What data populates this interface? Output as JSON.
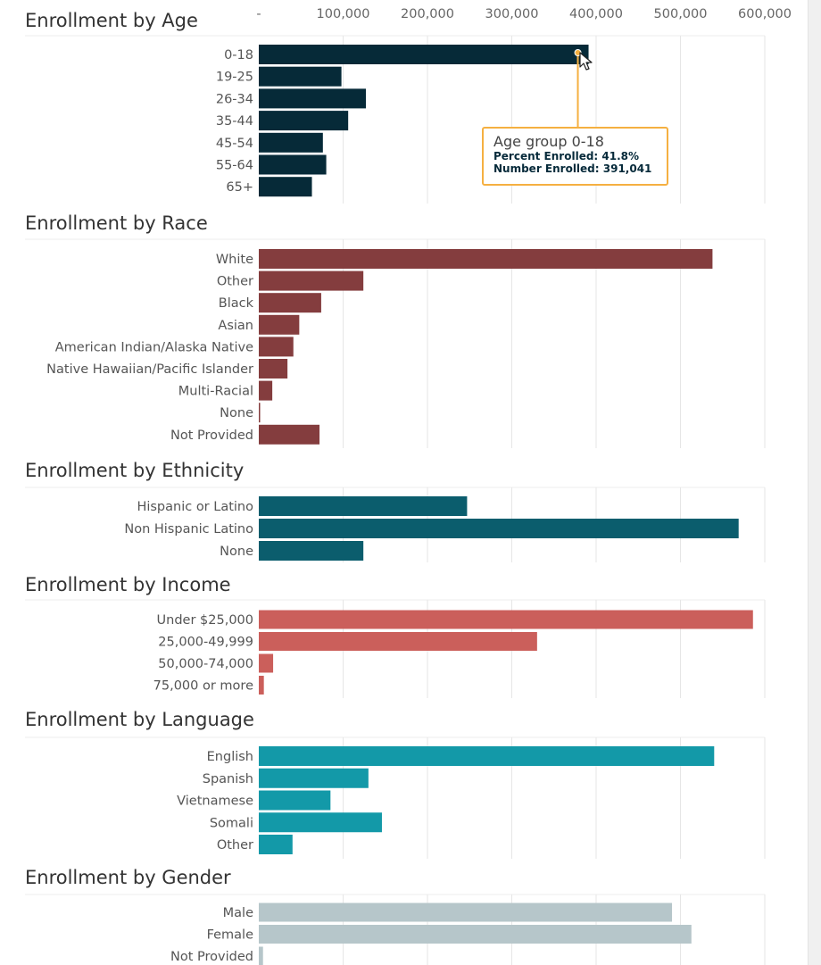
{
  "axis": {
    "min": 0,
    "max": 600000,
    "ticks": [
      "-",
      "100,000",
      "200,000",
      "300,000",
      "400,000",
      "500,000",
      "600,000"
    ]
  },
  "chart_data": [
    {
      "type": "bar",
      "orientation": "horizontal",
      "title": "Enrollment by Age",
      "color": "#062a38",
      "categories": [
        "0-18",
        "19-25",
        "26-34",
        "35-44",
        "45-54",
        "55-64",
        "65+"
      ],
      "values": [
        391041,
        98000,
        127000,
        106000,
        76000,
        80000,
        63000
      ]
    },
    {
      "type": "bar",
      "orientation": "horizontal",
      "title": "Enrollment by Race",
      "color": "#843d3e",
      "categories": [
        "White",
        "Other",
        "Black",
        "Asian",
        "American Indian/Alaska Native",
        "Native Hawaiian/Pacific Islander",
        "Multi-Racial",
        "None",
        "Not Provided"
      ],
      "values": [
        538000,
        124000,
        74000,
        48000,
        41000,
        34000,
        16000,
        1500,
        72000
      ]
    },
    {
      "type": "bar",
      "orientation": "horizontal",
      "title": "Enrollment by Ethnicity",
      "color": "#0b5d6d",
      "categories": [
        "Hispanic or Latino",
        "Non Hispanic Latino",
        "None"
      ],
      "values": [
        247000,
        569000,
        124000
      ]
    },
    {
      "type": "bar",
      "orientation": "horizontal",
      "title": "Enrollment by Income",
      "color": "#cb5f5b",
      "categories": [
        "Under $25,000",
        "25,000-49,999",
        "50,000-74,000",
        "75,000 or more"
      ],
      "values": [
        586000,
        330000,
        17000,
        6000
      ]
    },
    {
      "type": "bar",
      "orientation": "horizontal",
      "title": "Enrollment by Language",
      "color": "#1399a8",
      "categories": [
        "English",
        "Spanish",
        "Vietnamese",
        "Somali",
        "Other"
      ],
      "values": [
        540000,
        130000,
        85000,
        146000,
        40000
      ]
    },
    {
      "type": "bar",
      "orientation": "horizontal",
      "title": "Enrollment by Gender",
      "color": "#b6c6ca",
      "categories": [
        "Male",
        "Female",
        "Not Provided"
      ],
      "values": [
        490000,
        513000,
        5000
      ]
    }
  ],
  "tooltip": {
    "title": "Age group 0-18",
    "percent_line": "Percent Enrolled: 41.8%",
    "number_line": "Number Enrolled: 391,041",
    "border_color": "#f5b041"
  }
}
